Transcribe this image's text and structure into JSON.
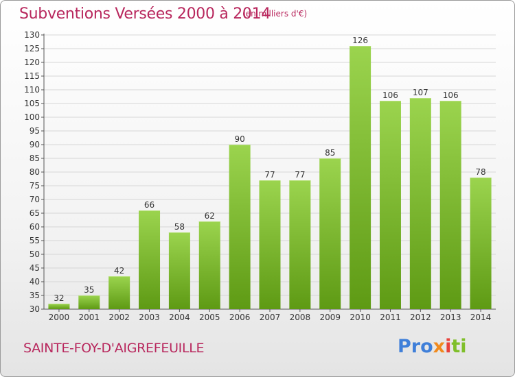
{
  "title": "Subventions Versées 2000 à 2014",
  "subtitle": "(en milliers d'€)",
  "place": "SAINTE-FOY-D'AIGREFEUILLE",
  "logo": {
    "part1": "Pro",
    "part2": "x",
    "part3": "i",
    "part4": "ti"
  },
  "colors": {
    "accent": "#b8275d",
    "bar_top": "#9bd44e",
    "bar_bottom": "#5e9a14",
    "grid": "#d6d6d6"
  },
  "chart_data": {
    "type": "bar",
    "title": "Subventions Versées 2000 à 2014",
    "subtitle": "(en milliers d'€)",
    "categories": [
      "2000",
      "2001",
      "2002",
      "2003",
      "2004",
      "2005",
      "2006",
      "2007",
      "2008",
      "2009",
      "2010",
      "2011",
      "2012",
      "2013",
      "2014"
    ],
    "values": [
      32,
      35,
      42,
      66,
      58,
      62,
      90,
      77,
      77,
      85,
      126,
      106,
      107,
      106,
      78
    ],
    "ylim": [
      30,
      130
    ],
    "yticks": [
      30,
      35,
      40,
      45,
      50,
      55,
      60,
      65,
      70,
      75,
      80,
      85,
      90,
      95,
      100,
      105,
      110,
      115,
      120,
      125,
      130
    ],
    "grid": true,
    "xlabel": "",
    "ylabel": ""
  }
}
